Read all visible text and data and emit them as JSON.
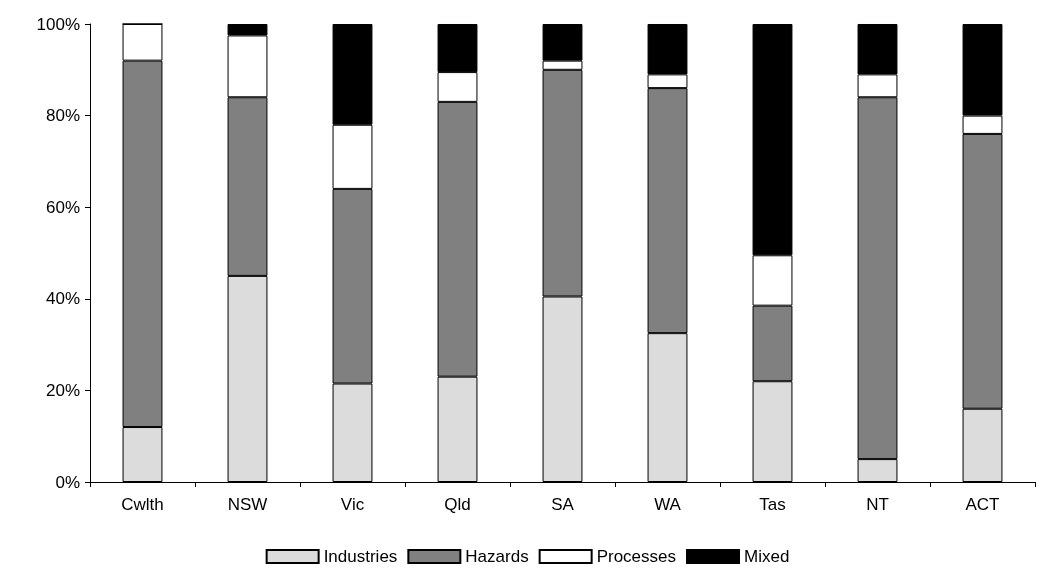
{
  "chart_data": {
    "type": "bar",
    "stacked": true,
    "categories": [
      "Cwlth",
      "NSW",
      "Vic",
      "Qld",
      "SA",
      "WA",
      "Tas",
      "NT",
      "ACT"
    ],
    "series": [
      {
        "name": "Industries",
        "color": "#dcdcdc",
        "values": [
          12,
          45,
          21.5,
          23,
          40.5,
          32.5,
          22,
          5,
          16
        ]
      },
      {
        "name": "Hazards",
        "color": "#808080",
        "values": [
          80,
          39,
          42.5,
          60,
          49.5,
          53.5,
          16.5,
          79,
          60
        ]
      },
      {
        "name": "Processes",
        "color": "#ffffff",
        "values": [
          8,
          13.5,
          14,
          6.5,
          2,
          3,
          11,
          5,
          4
        ]
      },
      {
        "name": "Mixed",
        "color": "#000000",
        "values": [
          0,
          2.5,
          22,
          10.5,
          8,
          11,
          50.5,
          11,
          20
        ]
      }
    ],
    "ylim": [
      0,
      100
    ],
    "yticks": [
      {
        "value": 0,
        "label": "0%"
      },
      {
        "value": 20,
        "label": "20%"
      },
      {
        "value": 40,
        "label": "40%"
      },
      {
        "value": 60,
        "label": "60%"
      },
      {
        "value": 80,
        "label": "80%"
      },
      {
        "value": 100,
        "label": "100%"
      }
    ],
    "grid": false,
    "legend": "bottom"
  }
}
